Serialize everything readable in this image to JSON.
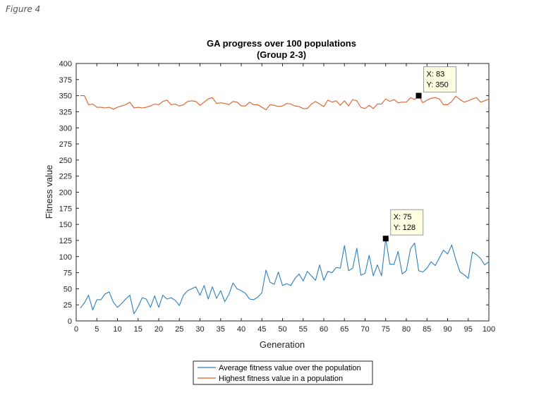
{
  "figure_label": "Figure 4",
  "colors": {
    "average": "#2f7ebd",
    "highest": "#d9602b",
    "tooltip_bg": "#ffffe1",
    "tooltip_border": "#999999"
  },
  "chart_data": {
    "type": "line",
    "title": "GA progress over 100 populations",
    "subtitle": "(Group 2-3)",
    "xlabel": "Generation",
    "ylabel": "Fitness value",
    "xlim": [
      0,
      100
    ],
    "ylim": [
      0,
      400
    ],
    "xticks": [
      0,
      5,
      10,
      15,
      20,
      25,
      30,
      35,
      40,
      45,
      50,
      55,
      60,
      65,
      70,
      75,
      80,
      85,
      90,
      95,
      100
    ],
    "yticks": [
      0,
      25,
      50,
      75,
      100,
      125,
      150,
      175,
      200,
      225,
      250,
      275,
      300,
      325,
      350,
      375,
      400
    ],
    "grid": false,
    "legend_position": "bottom-outside",
    "x": [
      1,
      2,
      3,
      4,
      5,
      6,
      7,
      8,
      9,
      10,
      11,
      12,
      13,
      14,
      15,
      16,
      17,
      18,
      19,
      20,
      21,
      22,
      23,
      24,
      25,
      26,
      27,
      28,
      29,
      30,
      31,
      32,
      33,
      34,
      35,
      36,
      37,
      38,
      39,
      40,
      41,
      42,
      43,
      44,
      45,
      46,
      47,
      48,
      49,
      50,
      51,
      52,
      53,
      54,
      55,
      56,
      57,
      58,
      59,
      60,
      61,
      62,
      63,
      64,
      65,
      66,
      67,
      68,
      69,
      70,
      71,
      72,
      73,
      74,
      75,
      76,
      77,
      78,
      79,
      80,
      81,
      82,
      83,
      84,
      85,
      86,
      87,
      88,
      89,
      90,
      91,
      92,
      93,
      94,
      95,
      96,
      97,
      98,
      99,
      100
    ],
    "series": [
      {
        "name": "Average fitness value over the population",
        "values": [
          20,
          28,
          40,
          17,
          33,
          33,
          42,
          45,
          29,
          21,
          27,
          34,
          40,
          11,
          22,
          36,
          34,
          21,
          39,
          21,
          40,
          34,
          36,
          32,
          24,
          40,
          47,
          50,
          53,
          40,
          55,
          34,
          53,
          35,
          47,
          30,
          41,
          59,
          50,
          47,
          43,
          34,
          33,
          37,
          44,
          79,
          60,
          57,
          76,
          55,
          58,
          55,
          66,
          73,
          62,
          77,
          70,
          63,
          87,
          63,
          77,
          75,
          83,
          82,
          117,
          78,
          82,
          113,
          71,
          74,
          102,
          70,
          87,
          70,
          128,
          88,
          88,
          108,
          73,
          78,
          112,
          121,
          78,
          76,
          82,
          92,
          86,
          98,
          110,
          104,
          118,
          95,
          76,
          72,
          66,
          107,
          103,
          97,
          87,
          92
        ]
      },
      {
        "name": "Highest fitness value in a population",
        "values": [
          350,
          350,
          336,
          337,
          332,
          332,
          331,
          332,
          329,
          332,
          334,
          336,
          340,
          331,
          332,
          331,
          332,
          334,
          337,
          336,
          341,
          343,
          336,
          337,
          334,
          336,
          341,
          342,
          341,
          335,
          340,
          345,
          347,
          338,
          339,
          338,
          336,
          341,
          340,
          334,
          334,
          340,
          336,
          336,
          332,
          328,
          336,
          335,
          333,
          334,
          338,
          337,
          334,
          333,
          330,
          330,
          337,
          341,
          337,
          333,
          343,
          340,
          342,
          335,
          342,
          334,
          344,
          342,
          332,
          330,
          335,
          330,
          337,
          337,
          345,
          341,
          344,
          339,
          340,
          340,
          347,
          344,
          350,
          339,
          343,
          346,
          347,
          345,
          336,
          336,
          341,
          349,
          344,
          340,
          342,
          345,
          347,
          340,
          342,
          345
        ]
      }
    ],
    "annotations": [
      {
        "x": 83,
        "y": 350,
        "text_x": "X: 83",
        "text_y": "Y: 350"
      },
      {
        "x": 75,
        "y": 128,
        "text_x": "X: 75",
        "text_y": "Y: 128"
      }
    ]
  }
}
